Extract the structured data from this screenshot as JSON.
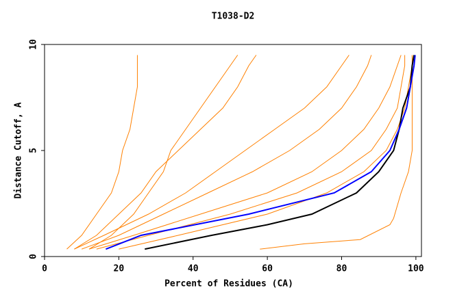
{
  "chart_data": {
    "type": "line",
    "title": "T1038-D2",
    "x_label": "Percent of Residues (CA)",
    "y_label": "Distance Cutoff, A",
    "xlim": [
      0,
      101.5
    ],
    "ylim": [
      0,
      10
    ],
    "xticks": [
      0,
      20,
      40,
      60,
      80,
      100
    ],
    "yticks": [
      0,
      5,
      10
    ],
    "series": [
      {
        "color": "#ff8000",
        "x": [
          6,
          10,
          14,
          18,
          20,
          21,
          23,
          24,
          25,
          25,
          25
        ],
        "values": [
          0.35,
          1,
          2,
          3,
          4,
          5,
          6,
          7,
          8,
          9,
          9.5
        ]
      },
      {
        "color": "#ff8000",
        "x": [
          8,
          14,
          20,
          26,
          30,
          36,
          42,
          48,
          52,
          55,
          57
        ],
        "values": [
          0.35,
          1,
          2,
          3,
          4,
          5,
          6,
          7,
          8,
          9,
          9.5
        ]
      },
      {
        "color": "#ff8000",
        "x": [
          12,
          18,
          24,
          28,
          32,
          34,
          38,
          42,
          46,
          50,
          52
        ],
        "values": [
          0.35,
          1,
          2,
          3,
          4,
          5,
          6,
          7,
          8,
          9,
          9.5
        ]
      },
      {
        "color": "#ff8000",
        "x": [
          8,
          16,
          28,
          38,
          46,
          54,
          62,
          70,
          76,
          80,
          82
        ],
        "values": [
          0.35,
          1,
          2,
          3,
          4,
          5,
          6,
          7,
          8,
          9,
          9.5
        ]
      },
      {
        "color": "#ff8000",
        "x": [
          10,
          20,
          32,
          44,
          56,
          66,
          74,
          80,
          84,
          87,
          88
        ],
        "values": [
          0.35,
          1,
          2,
          3,
          4,
          5,
          6,
          7,
          8,
          9,
          9.5
        ]
      },
      {
        "color": "#ff8000",
        "x": [
          12,
          24,
          42,
          60,
          72,
          80,
          86,
          90,
          93,
          95,
          96
        ],
        "values": [
          0.35,
          1,
          2,
          3,
          4,
          5,
          6,
          7,
          8,
          9,
          9.5
        ]
      },
      {
        "color": "#ff8000",
        "x": [
          14,
          28,
          50,
          68,
          80,
          88,
          92,
          95,
          96,
          97,
          97
        ],
        "values": [
          0.35,
          1,
          2,
          3,
          4,
          5,
          6,
          7,
          8,
          9,
          9.5
        ]
      },
      {
        "color": "#ff8000",
        "x": [
          20,
          36,
          60,
          76,
          86,
          92,
          95,
          97,
          98,
          99,
          99
        ],
        "values": [
          0.35,
          1,
          2,
          3,
          4,
          5,
          6,
          7,
          8,
          9,
          9.5
        ]
      },
      {
        "color": "#ff8000",
        "x": [
          58,
          70,
          85,
          93,
          94,
          96,
          98,
          99,
          99,
          99
        ],
        "values": [
          0.35,
          0.6,
          0.8,
          1.5,
          1.8,
          3,
          4,
          5,
          7,
          9.5
        ]
      },
      {
        "color": "#000000",
        "x": [
          27,
          45,
          60,
          72,
          84,
          90,
          94,
          95.5,
          96.5,
          98.5,
          99,
          99.5
        ],
        "values": [
          0.35,
          1,
          1.5,
          2,
          3,
          4,
          5,
          6,
          7,
          8,
          9,
          9.5
        ]
      },
      {
        "color": "#0000ff",
        "x": [
          16.5,
          26,
          55,
          78,
          88,
          93,
          95.5,
          97.5,
          98.5,
          99.5,
          99.8
        ],
        "values": [
          0.35,
          1,
          2,
          3,
          4,
          5,
          6,
          7,
          8,
          9,
          9.5
        ]
      }
    ]
  }
}
